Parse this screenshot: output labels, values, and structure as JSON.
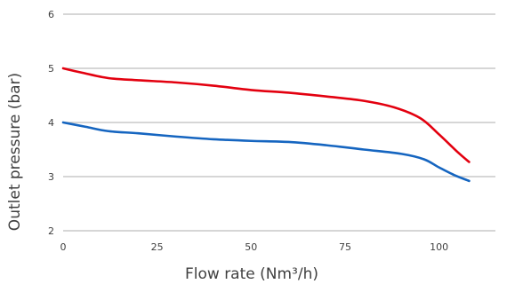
{
  "chart_data": {
    "type": "line",
    "title": "",
    "xlabel": "Flow rate (Nm³/h)",
    "ylabel": "Outlet pressure (bar)",
    "xlim": [
      0,
      115
    ],
    "ylim": [
      2,
      6
    ],
    "xticks": [
      0,
      25,
      50,
      75,
      100
    ],
    "yticks": [
      2,
      3,
      4,
      5,
      6
    ],
    "grid": "horizontal",
    "legend": "none",
    "series": [
      {
        "color": "#e3000f",
        "points": [
          [
            0,
            5.0
          ],
          [
            5,
            4.92
          ],
          [
            12,
            4.82
          ],
          [
            20,
            4.78
          ],
          [
            30,
            4.74
          ],
          [
            40,
            4.68
          ],
          [
            50,
            4.6
          ],
          [
            60,
            4.55
          ],
          [
            70,
            4.48
          ],
          [
            80,
            4.4
          ],
          [
            88,
            4.28
          ],
          [
            95,
            4.08
          ],
          [
            100,
            3.78
          ],
          [
            105,
            3.45
          ],
          [
            108,
            3.27
          ]
        ]
      },
      {
        "color": "#1565c0",
        "points": [
          [
            0,
            4.0
          ],
          [
            6,
            3.92
          ],
          [
            12,
            3.84
          ],
          [
            20,
            3.8
          ],
          [
            30,
            3.74
          ],
          [
            40,
            3.69
          ],
          [
            50,
            3.66
          ],
          [
            60,
            3.64
          ],
          [
            70,
            3.58
          ],
          [
            80,
            3.5
          ],
          [
            90,
            3.42
          ],
          [
            96,
            3.32
          ],
          [
            100,
            3.17
          ],
          [
            104,
            3.03
          ],
          [
            108,
            2.92
          ]
        ]
      }
    ]
  }
}
